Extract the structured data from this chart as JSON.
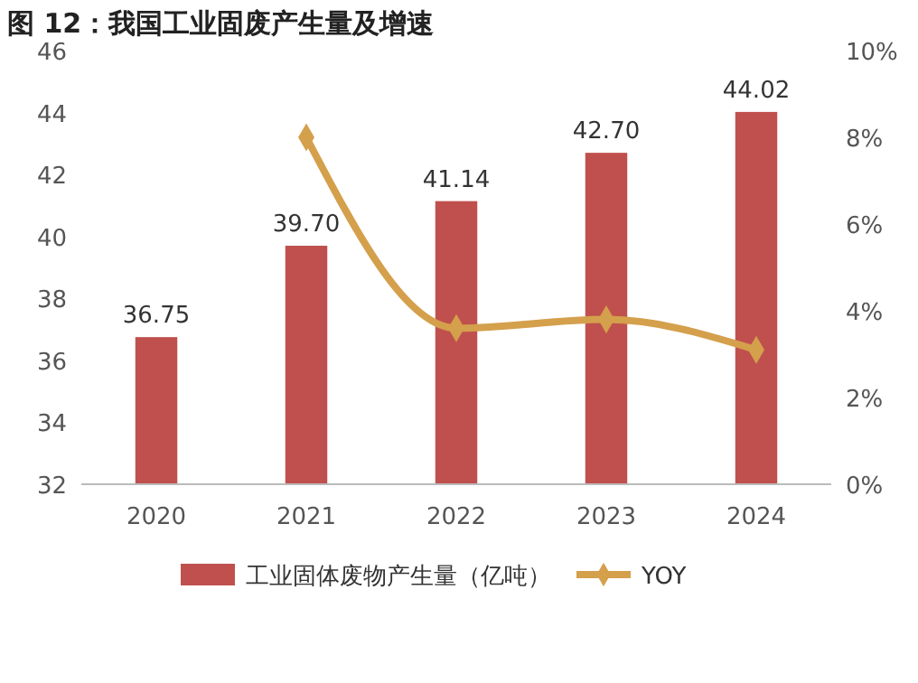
{
  "chart_data": {
    "type": "bar",
    "title": "图 12：我国工业固废产生量及增速",
    "categories": [
      "2020",
      "2021",
      "2022",
      "2023",
      "2024"
    ],
    "series": [
      {
        "name": "工业固体废物产生量（亿吨）",
        "color": "#c0504d",
        "values": [
          36.75,
          39.7,
          41.14,
          42.7,
          44.02
        ],
        "value_labels": [
          "36.75",
          "39.70",
          "41.14",
          "42.70",
          "44.02"
        ]
      },
      {
        "name": "YOY",
        "type": "line",
        "axis": "y2",
        "color": "#d4a04c",
        "values": [
          null,
          8.0,
          3.6,
          3.8,
          3.1
        ],
        "marker": "diamond"
      }
    ],
    "ylim": [
      32,
      46
    ],
    "yticks": [
      32,
      34,
      36,
      38,
      40,
      42,
      44,
      46
    ],
    "y2lim": [
      0,
      10
    ],
    "y2ticks": [
      {
        "value": 0,
        "label": "0%"
      },
      {
        "value": 2,
        "label": "2%"
      },
      {
        "value": 4,
        "label": "4%"
      },
      {
        "value": 6,
        "label": "6%"
      },
      {
        "value": 8,
        "label": "8%"
      },
      {
        "value": 10,
        "label": "10%"
      }
    ],
    "grid": false,
    "legend": "bottom"
  }
}
